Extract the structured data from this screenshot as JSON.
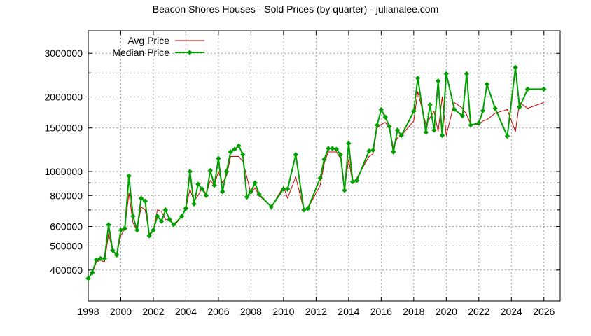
{
  "chart_data": {
    "type": "line",
    "title": "Beacon Shores Houses - Sold Prices (by quarter) - julianalee.com",
    "xlabel": "",
    "ylabel": "",
    "log_scale_y": true,
    "grid": true,
    "legend_placement": "top-left",
    "xlim": [
      1998,
      2027
    ],
    "ylim": [
      300000,
      3700000
    ],
    "x_ticks": [
      1998,
      2000,
      2002,
      2004,
      2006,
      2008,
      2010,
      2012,
      2014,
      2016,
      2018,
      2020,
      2022,
      2024,
      2026
    ],
    "x_tick_labels": [
      "1998",
      "2000",
      "2002",
      "2004",
      "2006",
      "2008",
      "2010",
      "2012",
      "2014",
      "2016",
      "2018",
      "2020",
      "2022",
      "2024",
      "2026"
    ],
    "y_ticks": [
      400000,
      500000,
      600000,
      800000,
      1000000,
      1500000,
      2000000,
      3000000
    ],
    "y_tick_labels": [
      "400000",
      "500000",
      "600000",
      "800000",
      "1000000",
      "1500000",
      "2000000",
      "3000000"
    ],
    "y_minor_ticks": [
      700000,
      900000,
      2500000
    ],
    "series": [
      {
        "name": "Avg Price",
        "color": "#d00000",
        "marker": "none",
        "x": [
          1998.0,
          1998.25,
          1998.5,
          1998.75,
          1999.0,
          1999.25,
          1999.5,
          1999.75,
          2000.0,
          2000.25,
          2000.5,
          2000.75,
          2001.0,
          2001.25,
          2001.5,
          2001.75,
          2002.0,
          2002.25,
          2002.5,
          2002.75,
          2003.0,
          2003.25,
          2003.75,
          2004.0,
          2004.25,
          2004.5,
          2004.75,
          2005.0,
          2005.25,
          2005.5,
          2005.75,
          2006.0,
          2006.25,
          2006.5,
          2006.75,
          2007.0,
          2007.25,
          2007.5,
          2007.75,
          2008.0,
          2008.25,
          2008.5,
          2009.25,
          2010.0,
          2010.25,
          2010.75,
          2011.25,
          2011.5,
          2012.25,
          2012.5,
          2012.75,
          2013.0,
          2013.25,
          2013.5,
          2013.75,
          2014.0,
          2014.25,
          2014.5,
          2015.25,
          2015.5,
          2015.75,
          2016.0,
          2016.25,
          2016.5,
          2016.75,
          2017.0,
          2017.25,
          2018.0,
          2018.25,
          2018.75,
          2019.0,
          2019.25,
          2019.5,
          2019.75,
          2020.0,
          2020.5,
          2021.0,
          2021.25,
          2021.5,
          2022.0,
          2022.25,
          2022.5,
          2023.0,
          2023.75,
          2024.25,
          2024.5,
          2025.0,
          2026.0
        ],
        "values": [
          370000,
          390000,
          430000,
          440000,
          430000,
          560000,
          480000,
          460000,
          550000,
          590000,
          820000,
          620000,
          580000,
          720000,
          700000,
          560000,
          580000,
          700000,
          690000,
          640000,
          640000,
          600000,
          660000,
          710000,
          850000,
          760000,
          800000,
          860000,
          810000,
          920000,
          880000,
          1000000,
          900000,
          960000,
          1150000,
          1150000,
          1150000,
          1100000,
          950000,
          810000,
          860000,
          800000,
          720000,
          870000,
          780000,
          950000,
          700000,
          710000,
          880000,
          1080000,
          1200000,
          1200000,
          1200000,
          1130000,
          850000,
          1120000,
          900000,
          940000,
          1150000,
          1180000,
          1500000,
          1550000,
          1580000,
          1500000,
          1250000,
          1370000,
          1400000,
          1600000,
          2100000,
          1550000,
          1650000,
          1750000,
          1450000,
          2000000,
          1400000,
          1900000,
          1800000,
          1700000,
          1550000,
          1550000,
          1600000,
          1620000,
          1720000,
          1780000,
          1450000,
          1900000,
          1800000,
          1900000
        ]
      },
      {
        "name": "Median Price",
        "color": "#00a000",
        "marker": "diamond",
        "x": [
          1998.0,
          1998.25,
          1998.5,
          1998.75,
          1999.0,
          1999.25,
          1999.5,
          1999.75,
          2000.0,
          2000.25,
          2000.5,
          2000.75,
          2001.0,
          2001.25,
          2001.5,
          2001.75,
          2002.0,
          2002.25,
          2002.5,
          2002.75,
          2003.0,
          2003.25,
          2003.75,
          2004.0,
          2004.25,
          2004.5,
          2004.75,
          2005.0,
          2005.25,
          2005.5,
          2005.75,
          2006.0,
          2006.25,
          2006.5,
          2006.75,
          2007.0,
          2007.25,
          2007.5,
          2007.75,
          2008.0,
          2008.25,
          2008.5,
          2009.25,
          2010.0,
          2010.25,
          2010.75,
          2011.25,
          2011.5,
          2012.25,
          2012.5,
          2012.75,
          2013.0,
          2013.25,
          2013.5,
          2013.75,
          2014.0,
          2014.25,
          2014.5,
          2015.25,
          2015.5,
          2015.75,
          2016.0,
          2016.25,
          2016.5,
          2016.75,
          2017.0,
          2017.25,
          2018.0,
          2018.25,
          2018.75,
          2019.0,
          2019.25,
          2019.5,
          2019.75,
          2020.0,
          2020.5,
          2021.0,
          2021.25,
          2021.5,
          2022.0,
          2022.25,
          2022.5,
          2023.0,
          2023.75,
          2024.25,
          2024.5,
          2025.0,
          2026.0
        ],
        "values": [
          370000,
          390000,
          440000,
          445000,
          445000,
          610000,
          480000,
          460000,
          580000,
          590000,
          960000,
          660000,
          580000,
          780000,
          760000,
          550000,
          580000,
          660000,
          630000,
          700000,
          640000,
          610000,
          660000,
          710000,
          1000000,
          740000,
          890000,
          850000,
          800000,
          1010000,
          880000,
          1130000,
          830000,
          1000000,
          1200000,
          1230000,
          1270000,
          1170000,
          790000,
          830000,
          900000,
          810000,
          720000,
          850000,
          850000,
          1170000,
          700000,
          710000,
          940000,
          1120000,
          1240000,
          1240000,
          1230000,
          1170000,
          840000,
          1300000,
          910000,
          920000,
          1210000,
          1220000,
          1540000,
          1780000,
          1660000,
          1520000,
          1200000,
          1470000,
          1400000,
          1750000,
          2380000,
          1440000,
          1860000,
          1470000,
          2320000,
          1400000,
          2480000,
          1780000,
          1680000,
          2480000,
          1540000,
          1570000,
          1760000,
          2250000,
          1800000,
          1390000,
          2630000,
          1820000,
          2150000,
          2150000
        ]
      }
    ]
  }
}
